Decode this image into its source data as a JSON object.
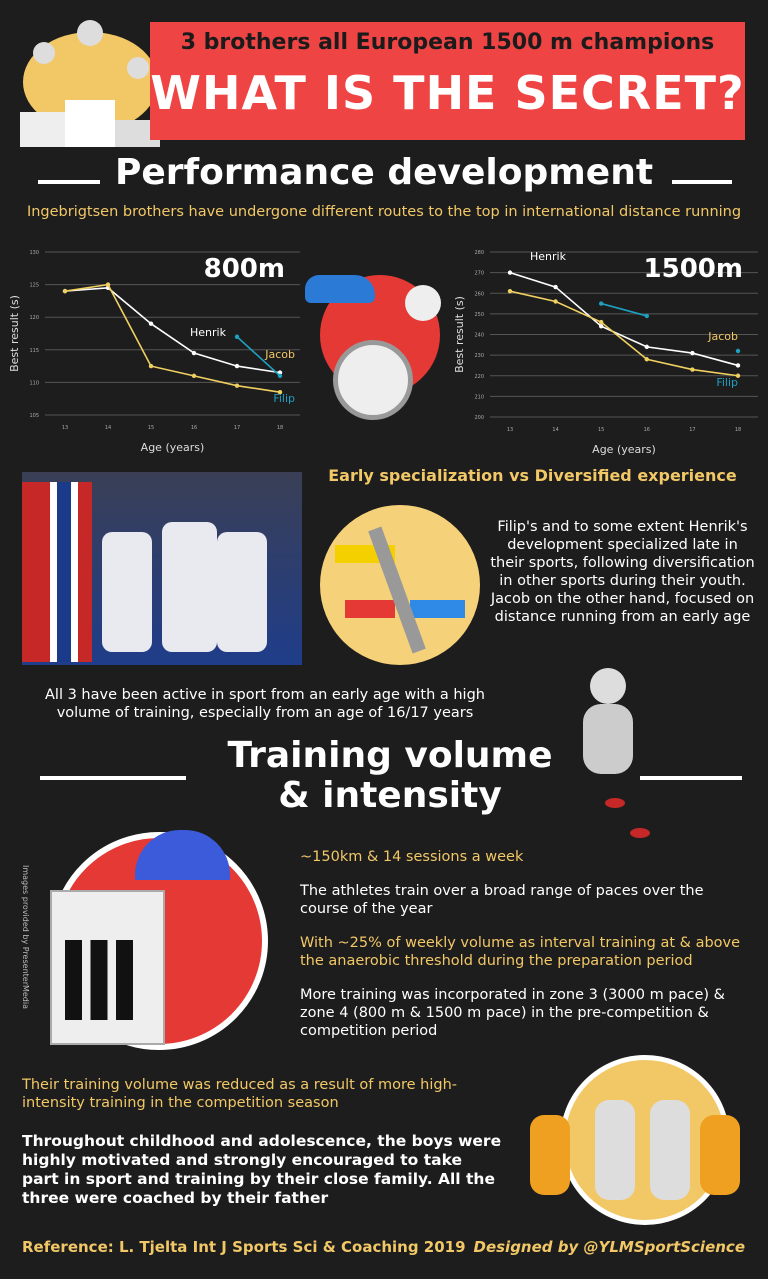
{
  "header": {
    "line1": "3 brothers all European 1500 m champions",
    "line2": "WHAT IS THE SECRET?"
  },
  "performance": {
    "title": "Performance development",
    "subtitle": "Ingebrigtsen brothers have undergone different routes to the top in international distance running"
  },
  "colors": {
    "background": "#1d1d1d",
    "banner": "#ef4444",
    "accent_yellow": "#f2c867",
    "henrik": "#ffffff",
    "jacob": "#f0d060",
    "filip": "#1ea0c0"
  },
  "chart_data": [
    {
      "type": "line",
      "title": "800m",
      "xlabel": "Age (years)",
      "ylabel": "Best result (s)",
      "x": [
        13,
        14,
        15,
        16,
        17,
        18
      ],
      "ylim": [
        105,
        130
      ],
      "yticks": [
        105,
        110,
        115,
        120,
        125,
        130
      ],
      "grid": true,
      "series": [
        {
          "name": "Henrik",
          "values": [
            124,
            124.5,
            119,
            114.5,
            112.5,
            111.5
          ]
        },
        {
          "name": "Jacob",
          "values": [
            124,
            125,
            112.5,
            111,
            109.5,
            108.5
          ]
        },
        {
          "name": "Filip",
          "values": [
            null,
            null,
            null,
            null,
            117,
            111
          ]
        }
      ]
    },
    {
      "type": "line",
      "title": "1500m",
      "xlabel": "Age (years)",
      "ylabel": "Best result (s)",
      "x": [
        13,
        14,
        15,
        16,
        17,
        18
      ],
      "ylim": [
        200,
        280
      ],
      "yticks": [
        200,
        210,
        220,
        230,
        240,
        250,
        260,
        270,
        280
      ],
      "grid": true,
      "series": [
        {
          "name": "Henrik",
          "values": [
            270,
            263,
            244,
            234,
            231,
            225
          ]
        },
        {
          "name": "Jacob",
          "values": [
            261,
            256,
            246,
            228,
            223,
            220
          ]
        },
        {
          "name": "Filip",
          "values": [
            null,
            null,
            255,
            249,
            null,
            232
          ]
        }
      ]
    }
  ],
  "specialization": {
    "title": "Early specialization vs Diversified experience",
    "text": "Filip's and to some extent Henrik's development specialized late in their sports, following diversification in other sports during their youth. Jacob on the other hand, focused on distance running from an early age",
    "active": "All 3 have been active in sport from an early age with a high volume of training, especially from an age of 16/17 years"
  },
  "training": {
    "title_line1": "Training volume",
    "title_line2": "& intensity",
    "credit": "Images provided by PresenterMedia",
    "points": [
      {
        "text": "~150km & 14 sessions a week",
        "yellow": true
      },
      {
        "text": "The athletes train over a broad range of paces over the course of the year",
        "yellow": false
      },
      {
        "text": "With ~25% of weekly volume as interval training at & above the anaerobic threshold during the preparation period",
        "yellow": true
      },
      {
        "text": "More training was incorporated in zone 3 (3000 m pace) & zone 4 (800 m & 1500 m pace) in the pre-competition & competition period",
        "yellow": false
      }
    ],
    "reduced": "Their training volume was reduced as a result of more high-intensity training in the competition season",
    "family": "Throughout childhood and adolescence, the boys were highly motivated and strongly encouraged to take part in sport and training by their close family. All the three were coached by their father"
  },
  "footer": {
    "reference": "Reference: L. Tjelta Int J Sports Sci & Coaching 2019",
    "designed": "Designed by @YLMSportScience"
  }
}
